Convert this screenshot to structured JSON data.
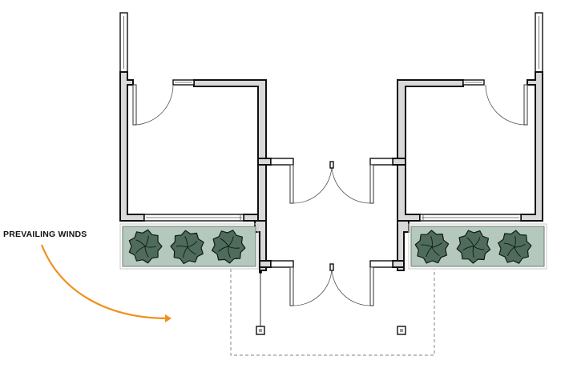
{
  "annotations": {
    "prevailing_winds": "PREVAILING WINDS"
  },
  "colors": {
    "wind_arrow": "#f0901e",
    "planter_fill": "#b5c8bd",
    "tree_fill": "#4f6b5c",
    "wall_fill": "#d9d9d9"
  },
  "icons": [
    "wind-arrow-icon",
    "tree-icon",
    "door-swing-icon",
    "window-icon"
  ]
}
